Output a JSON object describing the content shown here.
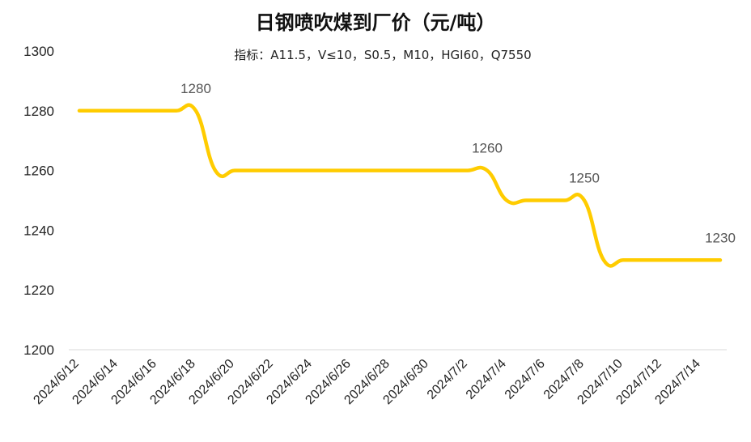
{
  "chart_data": {
    "type": "line",
    "title": "日钢喷吹煤到厂价（元/吨）",
    "subtitle": "指标：A11.5，V≤10，S0.5，M10，HGI60，Q7550",
    "xlabel": "",
    "ylabel": "",
    "ylim": [
      1200,
      1300
    ],
    "yticks": [
      1200,
      1220,
      1240,
      1260,
      1280,
      1300
    ],
    "x_tick_labels": [
      "2024/6/12",
      "2024/6/14",
      "2024/6/16",
      "2024/6/18",
      "2024/6/20",
      "2024/6/22",
      "2024/6/24",
      "2024/6/26",
      "2024/6/28",
      "2024/6/30",
      "2024/7/2",
      "2024/7/4",
      "2024/7/6",
      "2024/7/8",
      "2024/7/10",
      "2024/7/12",
      "2024/7/14"
    ],
    "categories": [
      "2024/6/12",
      "2024/6/13",
      "2024/6/14",
      "2024/6/15",
      "2024/6/16",
      "2024/6/17",
      "2024/6/18",
      "2024/6/19",
      "2024/6/20",
      "2024/6/21",
      "2024/6/22",
      "2024/6/23",
      "2024/6/24",
      "2024/6/25",
      "2024/6/26",
      "2024/6/27",
      "2024/6/28",
      "2024/6/29",
      "2024/6/30",
      "2024/7/1",
      "2024/7/2",
      "2024/7/3",
      "2024/7/4",
      "2024/7/5",
      "2024/7/6",
      "2024/7/7",
      "2024/7/8",
      "2024/7/9",
      "2024/7/10",
      "2024/7/11",
      "2024/7/12",
      "2024/7/13",
      "2024/7/14",
      "2024/7/15"
    ],
    "series": [
      {
        "name": "",
        "color": "#FFCC00",
        "values": [
          1280,
          1280,
          1280,
          1280,
          1280,
          1280,
          1280,
          1260,
          1260,
          1260,
          1260,
          1260,
          1260,
          1260,
          1260,
          1260,
          1260,
          1260,
          1260,
          1260,
          1260,
          1260,
          1250,
          1250,
          1250,
          1250,
          1250,
          1230,
          1230,
          1230,
          1230,
          1230,
          1230,
          1230
        ]
      }
    ],
    "data_labels": [
      {
        "category": "2024/6/18",
        "text": "1280"
      },
      {
        "category": "2024/7/3",
        "text": "1260"
      },
      {
        "category": "2024/7/8",
        "text": "1250"
      },
      {
        "category": "2024/7/15",
        "text": "1230"
      }
    ],
    "grid": false,
    "legend": "none"
  }
}
